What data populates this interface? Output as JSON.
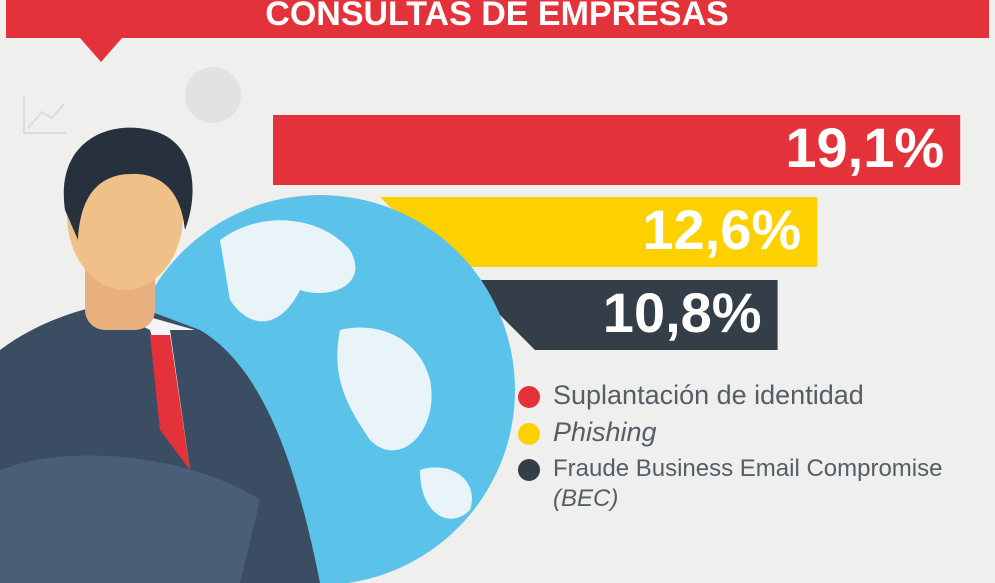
{
  "chart_data": {
    "type": "bar",
    "title": "CONSULTAS DE EMPRESAS",
    "categories": [
      "Suplantación de identidad",
      "Phishing",
      "Fraude Business Email Compromise (BEC)"
    ],
    "values": [
      19.1,
      12.6,
      10.8
    ],
    "value_labels": [
      "19,1%",
      "12,6%",
      "10,8%"
    ],
    "colors": [
      "#e4323a",
      "#fdd000",
      "#333e48"
    ]
  }
}
